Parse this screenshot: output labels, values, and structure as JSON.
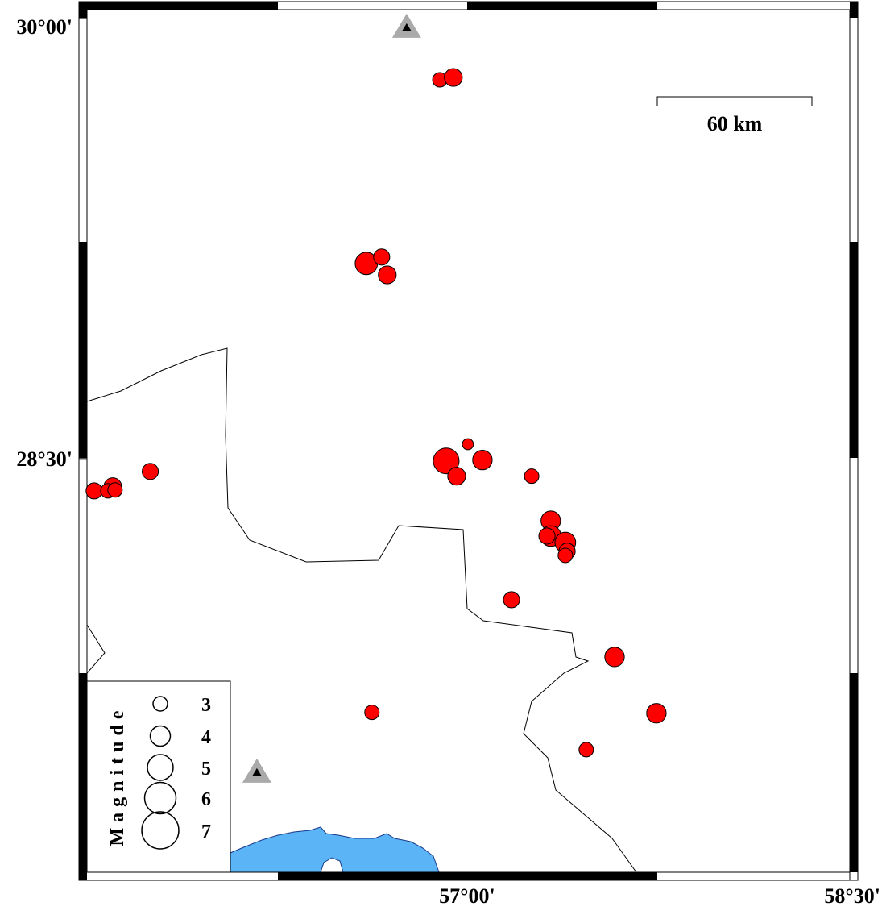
{
  "map": {
    "xlim": [
      55.51,
      58.5
    ],
    "ylim": [
      27.09,
      30.03
    ],
    "xticks": [
      {
        "value": 57,
        "label": "57°00'"
      },
      {
        "value": 58.5,
        "label": "58°30'"
      }
    ],
    "yticks": [
      {
        "value": 30,
        "label": "30°00'"
      },
      {
        "value": 28.5,
        "label": "28°30'"
      }
    ],
    "scale_bar": "60 km",
    "legend": {
      "title": "Magnitude",
      "magnitudes": [
        3,
        4,
        5,
        6,
        7
      ]
    },
    "stations": [
      {
        "lon": 56.763,
        "lat": 29.97
      },
      {
        "lon": 56.176,
        "lat": 27.431
      }
    ],
    "events": [
      {
        "lon": 56.893,
        "lat": 29.791,
        "mag": 3.0
      },
      {
        "lon": 56.946,
        "lat": 29.799,
        "mag": 3.6
      },
      {
        "lon": 56.605,
        "lat": 29.165,
        "mag": 4.4
      },
      {
        "lon": 56.665,
        "lat": 29.187,
        "mag": 3.3
      },
      {
        "lon": 56.687,
        "lat": 29.126,
        "mag": 3.6
      },
      {
        "lon": 56.918,
        "lat": 28.492,
        "mag": 5.0
      },
      {
        "lon": 57.003,
        "lat": 28.549,
        "mag": 2.4
      },
      {
        "lon": 57.06,
        "lat": 28.495,
        "mag": 3.9
      },
      {
        "lon": 56.959,
        "lat": 28.44,
        "mag": 3.6
      },
      {
        "lon": 57.253,
        "lat": 28.44,
        "mag": 3.0
      },
      {
        "lon": 55.538,
        "lat": 28.39,
        "mag": 3.3
      },
      {
        "lon": 55.611,
        "lat": 28.404,
        "mag": 3.6
      },
      {
        "lon": 55.592,
        "lat": 28.39,
        "mag": 3.0
      },
      {
        "lon": 55.62,
        "lat": 28.393,
        "mag": 3.0
      },
      {
        "lon": 55.758,
        "lat": 28.456,
        "mag": 3.3
      },
      {
        "lon": 57.328,
        "lat": 28.288,
        "mag": 3.9
      },
      {
        "lon": 57.328,
        "lat": 28.236,
        "mag": 4.1
      },
      {
        "lon": 57.313,
        "lat": 28.236,
        "mag": 3.3
      },
      {
        "lon": 57.385,
        "lat": 28.214,
        "mag": 4.1
      },
      {
        "lon": 57.392,
        "lat": 28.184,
        "mag": 3.3
      },
      {
        "lon": 57.385,
        "lat": 28.17,
        "mag": 3.0
      },
      {
        "lon": 57.174,
        "lat": 28.019,
        "mag": 3.3
      },
      {
        "lon": 57.578,
        "lat": 27.824,
        "mag": 3.9
      },
      {
        "lon": 57.742,
        "lat": 27.632,
        "mag": 3.9
      },
      {
        "lon": 56.627,
        "lat": 27.635,
        "mag": 3.0
      },
      {
        "lon": 57.467,
        "lat": 27.508,
        "mag": 3.0
      }
    ]
  }
}
